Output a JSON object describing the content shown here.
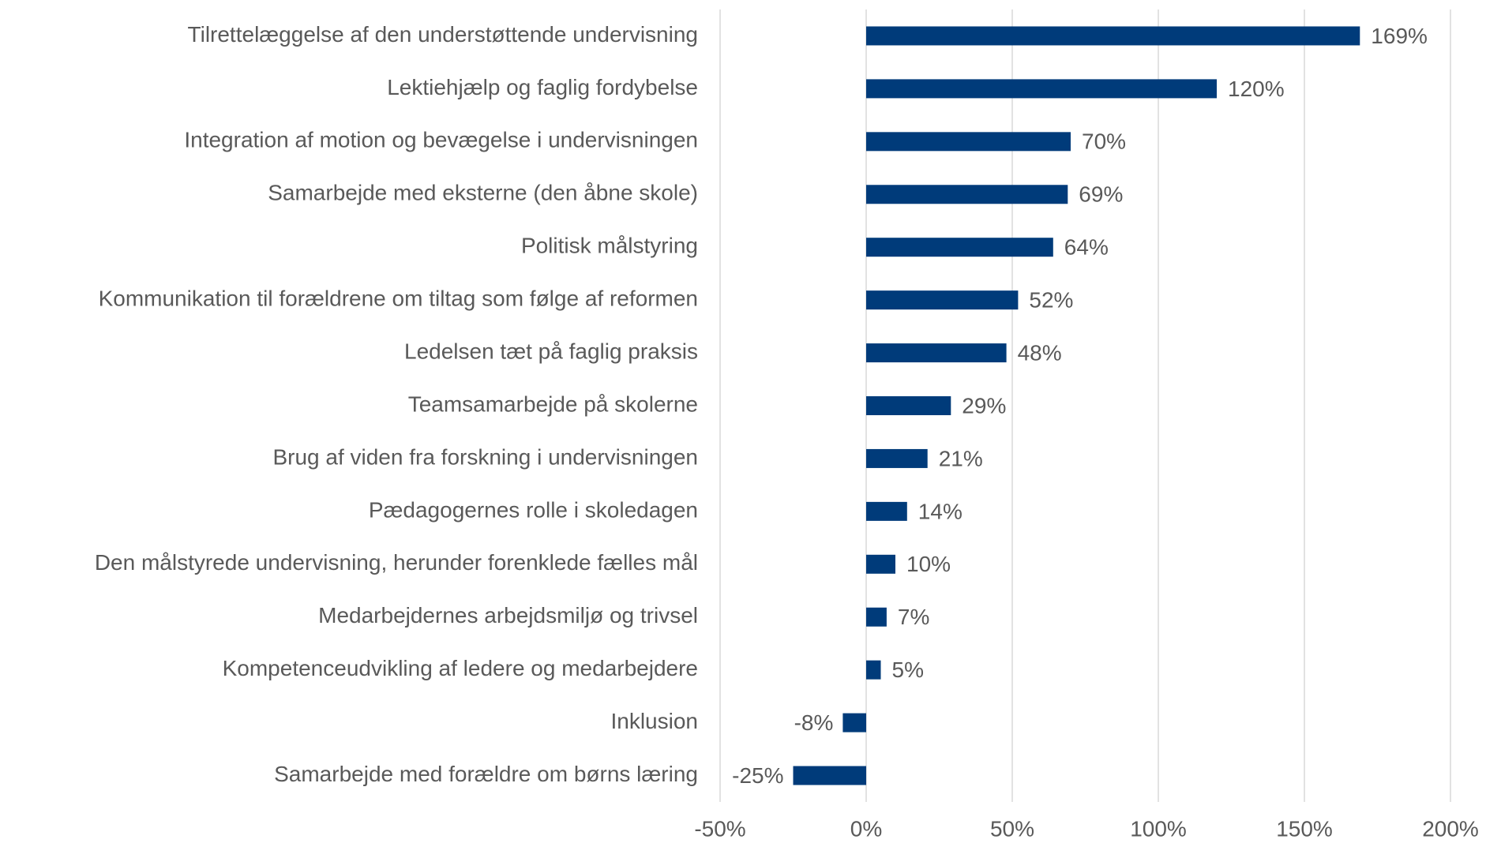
{
  "chart_data": {
    "type": "hbar",
    "categories": [
      "Tilrettelæggelse af den understøttende undervisning",
      "Lektiehjælp og faglig fordybelse",
      "Integration af motion og bevægelse i undervisningen",
      "Samarbejde med eksterne (den åbne skole)",
      "Politisk målstyring",
      "Kommunikation til forældrene om tiltag som følge af reformen",
      "Ledelsen tæt på faglig praksis",
      "Teamsamarbejde på skolerne",
      "Brug af viden fra forskning i undervisningen",
      "Pædagogernes rolle i skoledagen",
      "Den målstyrede undervisning, herunder forenklede fælles mål",
      "Medarbejdernes arbejdsmiljø og trivsel",
      "Kompetenceudvikling af ledere og medarbejdere",
      "Inklusion",
      "Samarbejde med forældre om børns læring"
    ],
    "values": [
      169,
      120,
      70,
      69,
      64,
      52,
      48,
      29,
      21,
      14,
      10,
      7,
      5,
      -8,
      -25
    ],
    "value_labels": [
      "169%",
      "120%",
      "70%",
      "69%",
      "64%",
      "52%",
      "48%",
      "29%",
      "21%",
      "14%",
      "10%",
      "7%",
      "5%",
      "-8%",
      "-25%"
    ],
    "color": "#003b7a",
    "xlim": [
      -50,
      200
    ],
    "xticks": [
      {
        "value": -50,
        "label": "-50%"
      },
      {
        "value": 0,
        "label": "0%"
      },
      {
        "value": 50,
        "label": "50%"
      },
      {
        "value": 100,
        "label": "100%"
      },
      {
        "value": 150,
        "label": "150%"
      },
      {
        "value": 200,
        "label": "200%"
      }
    ],
    "grid": true
  }
}
